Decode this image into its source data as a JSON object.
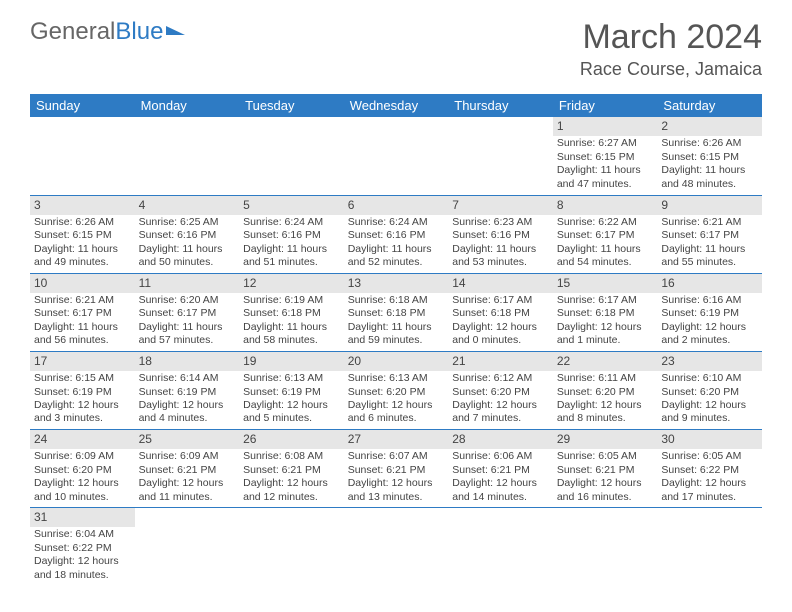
{
  "brand": {
    "part1": "General",
    "part2": "Blue"
  },
  "title": {
    "month": "March 2024",
    "location": "Race Course, Jamaica"
  },
  "colors": {
    "header_bg": "#2e7bc4",
    "row_divider": "#2e7bc4",
    "daynum_bg": "#e6e6e6",
    "text": "#444444",
    "logo_grey": "#666666",
    "logo_blue": "#2e7bc4"
  },
  "fonts": {
    "month_size": 34,
    "location_size": 18,
    "dayheader_size": 13,
    "cell_size": 10.5
  },
  "day_headers": [
    "Sunday",
    "Monday",
    "Tuesday",
    "Wednesday",
    "Thursday",
    "Friday",
    "Saturday"
  ],
  "weeks": [
    [
      null,
      null,
      null,
      null,
      null,
      {
        "n": "1",
        "sr": "Sunrise: 6:27 AM",
        "ss": "Sunset: 6:15 PM",
        "dl": "Daylight: 11 hours and 47 minutes."
      },
      {
        "n": "2",
        "sr": "Sunrise: 6:26 AM",
        "ss": "Sunset: 6:15 PM",
        "dl": "Daylight: 11 hours and 48 minutes."
      }
    ],
    [
      {
        "n": "3",
        "sr": "Sunrise: 6:26 AM",
        "ss": "Sunset: 6:15 PM",
        "dl": "Daylight: 11 hours and 49 minutes."
      },
      {
        "n": "4",
        "sr": "Sunrise: 6:25 AM",
        "ss": "Sunset: 6:16 PM",
        "dl": "Daylight: 11 hours and 50 minutes."
      },
      {
        "n": "5",
        "sr": "Sunrise: 6:24 AM",
        "ss": "Sunset: 6:16 PM",
        "dl": "Daylight: 11 hours and 51 minutes."
      },
      {
        "n": "6",
        "sr": "Sunrise: 6:24 AM",
        "ss": "Sunset: 6:16 PM",
        "dl": "Daylight: 11 hours and 52 minutes."
      },
      {
        "n": "7",
        "sr": "Sunrise: 6:23 AM",
        "ss": "Sunset: 6:16 PM",
        "dl": "Daylight: 11 hours and 53 minutes."
      },
      {
        "n": "8",
        "sr": "Sunrise: 6:22 AM",
        "ss": "Sunset: 6:17 PM",
        "dl": "Daylight: 11 hours and 54 minutes."
      },
      {
        "n": "9",
        "sr": "Sunrise: 6:21 AM",
        "ss": "Sunset: 6:17 PM",
        "dl": "Daylight: 11 hours and 55 minutes."
      }
    ],
    [
      {
        "n": "10",
        "sr": "Sunrise: 6:21 AM",
        "ss": "Sunset: 6:17 PM",
        "dl": "Daylight: 11 hours and 56 minutes."
      },
      {
        "n": "11",
        "sr": "Sunrise: 6:20 AM",
        "ss": "Sunset: 6:17 PM",
        "dl": "Daylight: 11 hours and 57 minutes."
      },
      {
        "n": "12",
        "sr": "Sunrise: 6:19 AM",
        "ss": "Sunset: 6:18 PM",
        "dl": "Daylight: 11 hours and 58 minutes."
      },
      {
        "n": "13",
        "sr": "Sunrise: 6:18 AM",
        "ss": "Sunset: 6:18 PM",
        "dl": "Daylight: 11 hours and 59 minutes."
      },
      {
        "n": "14",
        "sr": "Sunrise: 6:17 AM",
        "ss": "Sunset: 6:18 PM",
        "dl": "Daylight: 12 hours and 0 minutes."
      },
      {
        "n": "15",
        "sr": "Sunrise: 6:17 AM",
        "ss": "Sunset: 6:18 PM",
        "dl": "Daylight: 12 hours and 1 minute."
      },
      {
        "n": "16",
        "sr": "Sunrise: 6:16 AM",
        "ss": "Sunset: 6:19 PM",
        "dl": "Daylight: 12 hours and 2 minutes."
      }
    ],
    [
      {
        "n": "17",
        "sr": "Sunrise: 6:15 AM",
        "ss": "Sunset: 6:19 PM",
        "dl": "Daylight: 12 hours and 3 minutes."
      },
      {
        "n": "18",
        "sr": "Sunrise: 6:14 AM",
        "ss": "Sunset: 6:19 PM",
        "dl": "Daylight: 12 hours and 4 minutes."
      },
      {
        "n": "19",
        "sr": "Sunrise: 6:13 AM",
        "ss": "Sunset: 6:19 PM",
        "dl": "Daylight: 12 hours and 5 minutes."
      },
      {
        "n": "20",
        "sr": "Sunrise: 6:13 AM",
        "ss": "Sunset: 6:20 PM",
        "dl": "Daylight: 12 hours and 6 minutes."
      },
      {
        "n": "21",
        "sr": "Sunrise: 6:12 AM",
        "ss": "Sunset: 6:20 PM",
        "dl": "Daylight: 12 hours and 7 minutes."
      },
      {
        "n": "22",
        "sr": "Sunrise: 6:11 AM",
        "ss": "Sunset: 6:20 PM",
        "dl": "Daylight: 12 hours and 8 minutes."
      },
      {
        "n": "23",
        "sr": "Sunrise: 6:10 AM",
        "ss": "Sunset: 6:20 PM",
        "dl": "Daylight: 12 hours and 9 minutes."
      }
    ],
    [
      {
        "n": "24",
        "sr": "Sunrise: 6:09 AM",
        "ss": "Sunset: 6:20 PM",
        "dl": "Daylight: 12 hours and 10 minutes."
      },
      {
        "n": "25",
        "sr": "Sunrise: 6:09 AM",
        "ss": "Sunset: 6:21 PM",
        "dl": "Daylight: 12 hours and 11 minutes."
      },
      {
        "n": "26",
        "sr": "Sunrise: 6:08 AM",
        "ss": "Sunset: 6:21 PM",
        "dl": "Daylight: 12 hours and 12 minutes."
      },
      {
        "n": "27",
        "sr": "Sunrise: 6:07 AM",
        "ss": "Sunset: 6:21 PM",
        "dl": "Daylight: 12 hours and 13 minutes."
      },
      {
        "n": "28",
        "sr": "Sunrise: 6:06 AM",
        "ss": "Sunset: 6:21 PM",
        "dl": "Daylight: 12 hours and 14 minutes."
      },
      {
        "n": "29",
        "sr": "Sunrise: 6:05 AM",
        "ss": "Sunset: 6:21 PM",
        "dl": "Daylight: 12 hours and 16 minutes."
      },
      {
        "n": "30",
        "sr": "Sunrise: 6:05 AM",
        "ss": "Sunset: 6:22 PM",
        "dl": "Daylight: 12 hours and 17 minutes."
      }
    ],
    [
      {
        "n": "31",
        "sr": "Sunrise: 6:04 AM",
        "ss": "Sunset: 6:22 PM",
        "dl": "Daylight: 12 hours and 18 minutes."
      },
      null,
      null,
      null,
      null,
      null,
      null
    ]
  ]
}
